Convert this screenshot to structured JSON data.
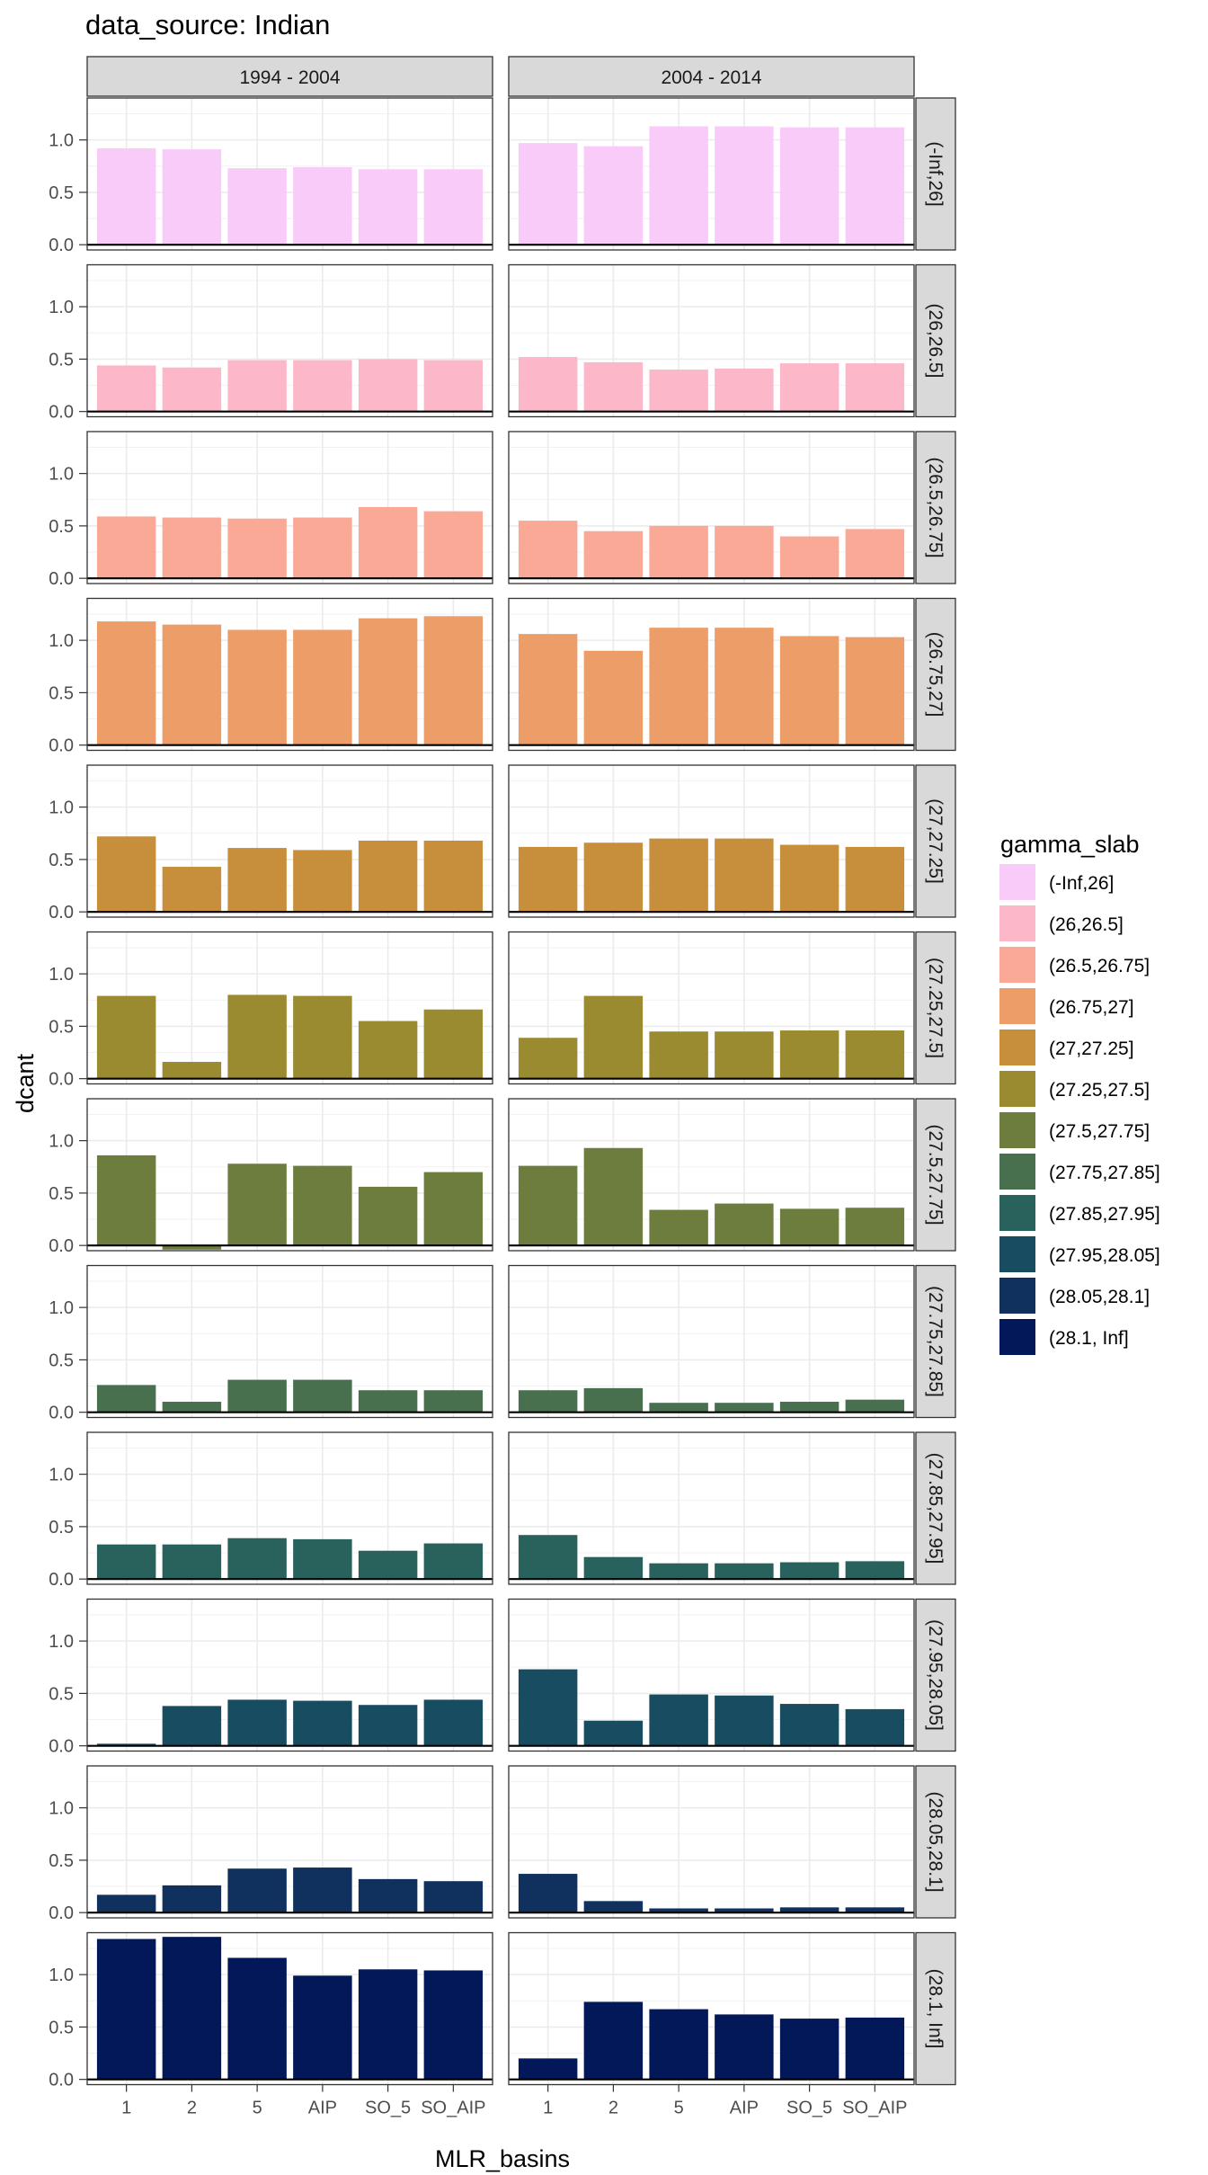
{
  "chart_data": {
    "type": "bar",
    "title": "data_source: Indian",
    "xlabel": "MLR_basins",
    "ylabel": "dcant",
    "ylim": [
      -0.05,
      1.4
    ],
    "yticks": [
      "0.0",
      "0.5",
      "1.0"
    ],
    "grid": true,
    "legend_title": "gamma_slab",
    "legend_position": "right",
    "categories": [
      "1",
      "2",
      "5",
      "AIP",
      "SO_5",
      "SO_AIP"
    ],
    "columns": [
      "1994 - 2004",
      "2004 - 2014"
    ],
    "rows": [
      {
        "label": "(-Inf,26]",
        "color": "#F9CBF9",
        "values": [
          [
            0.92,
            0.91,
            0.73,
            0.74,
            0.72,
            0.72
          ],
          [
            0.97,
            0.94,
            1.13,
            1.13,
            1.12,
            1.12
          ]
        ]
      },
      {
        "label": "(26,26.5]",
        "color": "#FCB8C8",
        "values": [
          [
            0.44,
            0.42,
            0.49,
            0.49,
            0.5,
            0.49
          ],
          [
            0.52,
            0.47,
            0.4,
            0.41,
            0.46,
            0.46
          ]
        ]
      },
      {
        "label": "(26.5,26.75]",
        "color": "#FBA997",
        "values": [
          [
            0.59,
            0.58,
            0.57,
            0.58,
            0.68,
            0.64
          ],
          [
            0.55,
            0.45,
            0.5,
            0.5,
            0.4,
            0.47
          ]
        ]
      },
      {
        "label": "(26.75,27]",
        "color": "#ED9D67",
        "values": [
          [
            1.18,
            1.15,
            1.1,
            1.1,
            1.21,
            1.23
          ],
          [
            1.06,
            0.9,
            1.12,
            1.12,
            1.04,
            1.03
          ]
        ]
      },
      {
        "label": "(27,27.25]",
        "color": "#C78E3C",
        "values": [
          [
            0.72,
            0.43,
            0.61,
            0.59,
            0.68,
            0.68
          ],
          [
            0.62,
            0.66,
            0.7,
            0.7,
            0.64,
            0.62
          ]
        ]
      },
      {
        "label": "(27.25,27.5]",
        "color": "#9A8A30",
        "values": [
          [
            0.79,
            0.16,
            0.8,
            0.79,
            0.55,
            0.66
          ],
          [
            0.39,
            0.79,
            0.45,
            0.45,
            0.46,
            0.46
          ]
        ]
      },
      {
        "label": "(27.5,27.75]",
        "color": "#6C7D3E",
        "values": [
          [
            0.86,
            -0.04,
            0.78,
            0.76,
            0.56,
            0.7
          ],
          [
            0.76,
            0.93,
            0.34,
            0.4,
            0.35,
            0.36
          ]
        ]
      },
      {
        "label": "(27.75,27.85]",
        "color": "#48704F",
        "values": [
          [
            0.26,
            0.1,
            0.31,
            0.31,
            0.21,
            0.21
          ],
          [
            0.21,
            0.23,
            0.09,
            0.09,
            0.1,
            0.12
          ]
        ]
      },
      {
        "label": "(27.85,27.95]",
        "color": "#29625C",
        "values": [
          [
            0.33,
            0.33,
            0.39,
            0.38,
            0.27,
            0.34
          ],
          [
            0.42,
            0.21,
            0.15,
            0.15,
            0.16,
            0.17
          ]
        ]
      },
      {
        "label": "(27.95,28.05]",
        "color": "#184C60",
        "values": [
          [
            0.02,
            0.38,
            0.44,
            0.43,
            0.39,
            0.44
          ],
          [
            0.73,
            0.24,
            0.49,
            0.48,
            0.4,
            0.35
          ]
        ]
      },
      {
        "label": "(28.05,28.1]",
        "color": "#10315E",
        "values": [
          [
            0.17,
            0.26,
            0.42,
            0.43,
            0.32,
            0.3
          ],
          [
            0.37,
            0.11,
            0.04,
            0.04,
            0.05,
            0.05
          ]
        ]
      },
      {
        "label": "(28.1, Inf]",
        "color": "#021858",
        "values": [
          [
            1.34,
            1.36,
            1.16,
            0.99,
            1.05,
            1.04
          ],
          [
            0.2,
            0.74,
            0.67,
            0.62,
            0.58,
            0.59
          ]
        ]
      }
    ]
  }
}
